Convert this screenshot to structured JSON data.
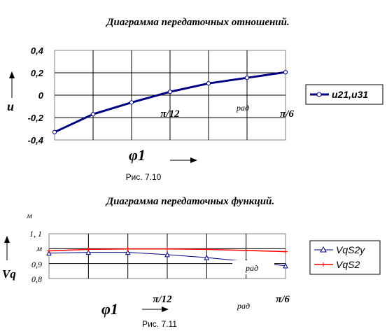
{
  "chart_data": [
    {
      "type": "line",
      "title": "Диаграмма передаточных отношений.",
      "ylabel": "u",
      "xlabel": "φ1",
      "ylim": [
        -0.4,
        0.4
      ],
      "yticks": [
        "0,4",
        "0,2",
        "0",
        "-0,2",
        "-0,4"
      ],
      "x_annotations": [
        "π/12",
        "рад",
        "π/6"
      ],
      "grid": true,
      "legend_position": "right",
      "series": [
        {
          "name": "u21,u31",
          "color": "#000080",
          "x": [
            0,
            1,
            2,
            3,
            4,
            5,
            6
          ],
          "values": [
            -0.33,
            -0.17,
            -0.065,
            0.03,
            0.105,
            0.155,
            0.205
          ]
        }
      ],
      "caption": "Рис. 7.10"
    },
    {
      "type": "line",
      "title": "Диаграмма  передаточных функций.",
      "ylabel": "Vq",
      "unit_label": "м",
      "xlabel": "φ1",
      "ylim": [
        0.8,
        1.1
      ],
      "yticks": [
        "1, 1",
        "м",
        "0,9",
        "0,8"
      ],
      "x_annotations": [
        "π/12",
        "рад",
        "π/6"
      ],
      "grid": true,
      "legend_position": "right",
      "series": [
        {
          "name": "VqS2y",
          "color": "#000080",
          "x": [
            0,
            1,
            2,
            3,
            4,
            5,
            6
          ],
          "values": [
            0.97,
            0.975,
            0.975,
            0.96,
            0.94,
            0.915,
            0.885
          ]
        },
        {
          "name": "VqS2",
          "color": "#ff0000",
          "x": [
            0,
            1,
            2,
            3,
            4,
            5,
            6
          ],
          "values": [
            0.985,
            0.995,
            0.998,
            0.998,
            0.995,
            0.988,
            0.98
          ]
        }
      ],
      "inner_label": "рад",
      "caption": "Рис. 7.11"
    }
  ]
}
